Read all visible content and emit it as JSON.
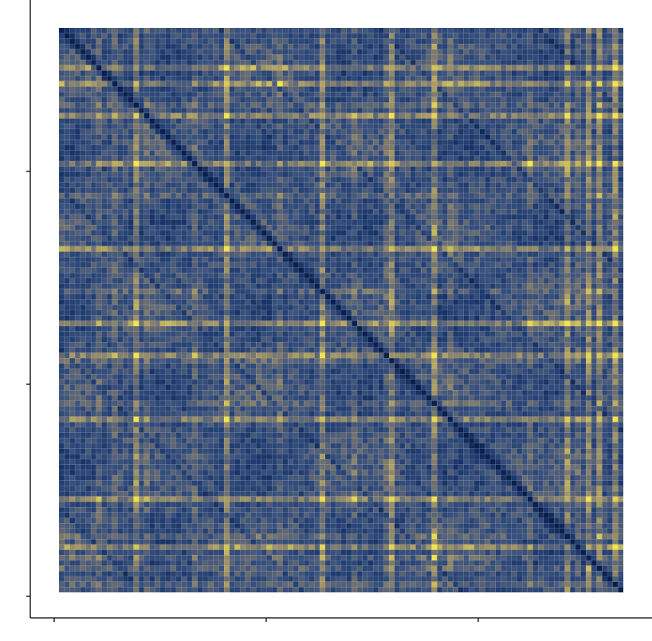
{
  "chart_data": {
    "type": "heatmap",
    "n": 106,
    "title": "",
    "xlabel": "",
    "ylabel": "",
    "x_ticks": [
      "",
      "",
      ""
    ],
    "y_ticks": [
      "",
      "",
      ""
    ],
    "colorscale": [
      "#0b1f4d",
      "#1e3a6e",
      "#38507c",
      "#6c6e70",
      "#a89864",
      "#f2e54c"
    ],
    "value_range": [
      0,
      1
    ],
    "diagonal_value": 0,
    "hot_rows": [
      7,
      10,
      16,
      25,
      41,
      55,
      61,
      73,
      88,
      97
    ],
    "hot_cols": [
      14,
      31,
      49,
      62,
      70,
      95,
      99,
      101,
      104
    ],
    "grid": false,
    "legend": "none"
  }
}
